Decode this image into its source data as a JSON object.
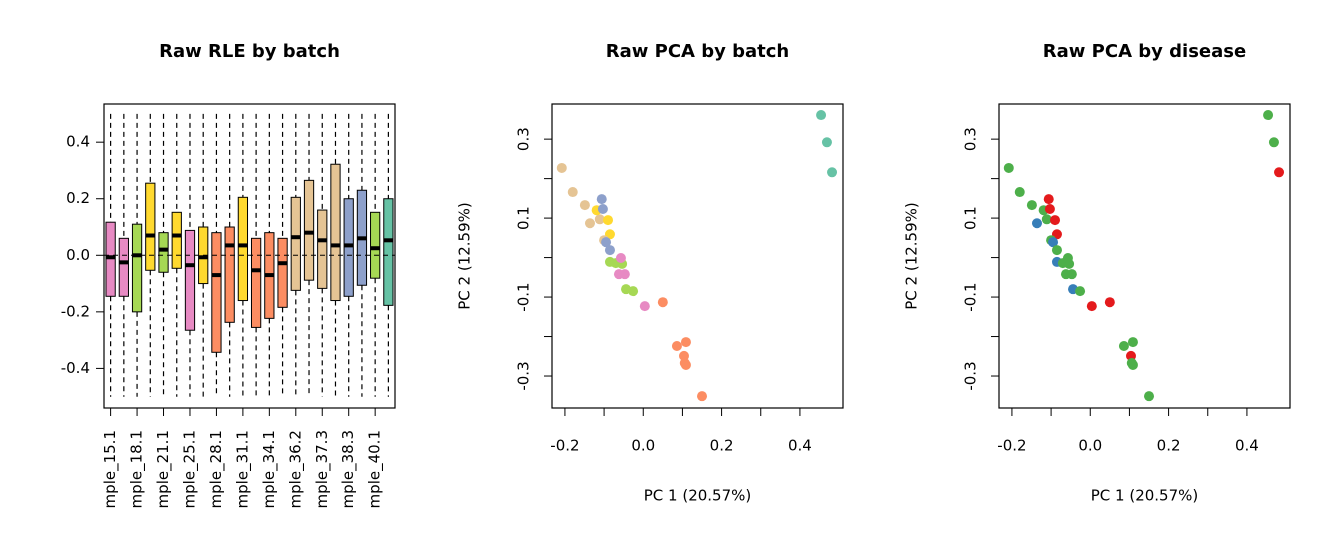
{
  "chart_data": [
    {
      "type": "box",
      "title": "Raw RLE by batch",
      "categories": [
        "mple_15.1",
        null,
        "mple_18.1",
        null,
        "mple_21.1",
        null,
        "mple_25.1",
        null,
        "mple_28.1",
        null,
        "mple_31.1",
        null,
        "mple_34.1",
        null,
        "mple_36.2",
        null,
        "mple_37.3",
        null,
        "mple_38.3",
        null,
        "mple_40.1",
        null
      ],
      "boxes": [
        {
          "low": -0.5,
          "q1": -0.145,
          "median": -0.007,
          "q3": 0.117,
          "high": 0.5,
          "color": "#e78ac3"
        },
        {
          "low": -0.5,
          "q1": -0.145,
          "median": -0.025,
          "q3": 0.06,
          "high": 0.5,
          "color": "#e78ac3"
        },
        {
          "low": -0.5,
          "q1": -0.2,
          "median": 0,
          "q3": 0.11,
          "high": 0.5,
          "color": "#a6d854"
        },
        {
          "low": -0.5,
          "q1": -0.053,
          "median": 0.07,
          "q3": 0.255,
          "high": 0.5,
          "color": "#ffd92f"
        },
        {
          "low": -0.5,
          "q1": -0.06,
          "median": 0.02,
          "q3": 0.08,
          "high": 0.5,
          "color": "#a6d854"
        },
        {
          "low": -0.5,
          "q1": -0.046,
          "median": 0.07,
          "q3": 0.152,
          "high": 0.5,
          "color": "#ffd92f"
        },
        {
          "low": -0.5,
          "q1": -0.265,
          "median": -0.035,
          "q3": 0.088,
          "high": 0.5,
          "color": "#e78ac3"
        },
        {
          "low": -0.5,
          "q1": -0.1,
          "median": -0.007,
          "q3": 0.1,
          "high": 0.5,
          "color": "#ffd92f"
        },
        {
          "low": -0.5,
          "q1": -0.343,
          "median": -0.07,
          "q3": 0.08,
          "high": 0.5,
          "color": "#fc8d62"
        },
        {
          "low": -0.5,
          "q1": -0.237,
          "median": 0.035,
          "q3": 0.1,
          "high": 0.5,
          "color": "#fc8d62"
        },
        {
          "low": -0.5,
          "q1": -0.16,
          "median": 0.035,
          "q3": 0.205,
          "high": 0.5,
          "color": "#ffd92f"
        },
        {
          "low": -0.5,
          "q1": -0.255,
          "median": -0.053,
          "q3": 0.06,
          "high": 0.5,
          "color": "#fc8d62"
        },
        {
          "low": -0.5,
          "q1": -0.223,
          "median": -0.07,
          "q3": 0.08,
          "high": 0.5,
          "color": "#fc8d62"
        },
        {
          "low": -0.5,
          "q1": -0.184,
          "median": -0.028,
          "q3": 0.06,
          "high": 0.5,
          "color": "#fc8d62"
        },
        {
          "low": -0.5,
          "q1": -0.124,
          "median": 0.064,
          "q3": 0.205,
          "high": 0.5,
          "color": "#e5c494"
        },
        {
          "low": -0.5,
          "q1": -0.088,
          "median": 0.08,
          "q3": 0.265,
          "high": 0.5,
          "color": "#e5c494"
        },
        {
          "low": -0.5,
          "q1": -0.117,
          "median": 0.053,
          "q3": 0.16,
          "high": 0.5,
          "color": "#e5c494"
        },
        {
          "low": -0.5,
          "q1": -0.16,
          "median": 0.035,
          "q3": 0.322,
          "high": 0.5,
          "color": "#e5c494"
        },
        {
          "low": -0.5,
          "q1": -0.145,
          "median": 0.035,
          "q3": 0.2,
          "high": 0.5,
          "color": "#8da0cb"
        },
        {
          "low": -0.5,
          "q1": -0.106,
          "median": 0.06,
          "q3": 0.23,
          "high": 0.5,
          "color": "#8da0cb"
        },
        {
          "low": -0.5,
          "q1": -0.081,
          "median": 0.025,
          "q3": 0.152,
          "high": 0.5,
          "color": "#a6d854"
        },
        {
          "low": -0.5,
          "q1": -0.177,
          "median": 0.053,
          "q3": 0.2,
          "high": 0.5,
          "color": "#66c2a5"
        }
      ],
      "ylim": [
        -0.54,
        0.535
      ],
      "yticks": [
        -0.4,
        -0.2,
        {
          "value": 0,
          "label": "0.0"
        },
        0.2,
        0.4
      ]
    },
    {
      "type": "scatter",
      "title": "Raw PCA by batch",
      "x_label": "PC 1 (20.57%)",
      "y_label": "PC 2 (12.59%)",
      "x": [
        0.454,
        0.469,
        0.482,
        -0.208,
        -0.18,
        -0.149,
        -0.136,
        -0.111,
        -0.119,
        -0.106,
        -0.103,
        -0.09,
        -0.085,
        -0.1,
        -0.095,
        -0.085,
        -0.085,
        -0.07,
        -0.054,
        -0.057,
        -0.062,
        -0.047,
        -0.044,
        -0.026,
        0.004,
        0.05,
        0.086,
        0.109,
        0.104,
        0.106,
        0.109,
        0.15
      ],
      "y": [
        0.361,
        0.292,
        0.216,
        0.227,
        0.166,
        0.133,
        0.087,
        0.097,
        0.12,
        0.148,
        0.123,
        0.095,
        0.059,
        0.044,
        0.039,
        0.019,
        -0.011,
        -0.014,
        -0.016,
        -0.001,
        -0.042,
        -0.042,
        -0.08,
        -0.085,
        -0.123,
        -0.113,
        -0.224,
        -0.214,
        -0.249,
        -0.267,
        -0.272,
        -0.351
      ],
      "colors": [
        "#66c2a5",
        "#66c2a5",
        "#66c2a5",
        "#e5c494",
        "#e5c494",
        "#e5c494",
        "#e5c494",
        "#e5c494",
        "#ffd92f",
        "#8da0cb",
        "#8da0cb",
        "#ffd92f",
        "#ffd92f",
        "#e5c494",
        "#8da0cb",
        "#8da0cb",
        "#a6d854",
        "#a6d854",
        "#a6d854",
        "#e78ac3",
        "#e78ac3",
        "#e78ac3",
        "#a6d854",
        "#a6d854",
        "#e78ac3",
        "#fc8d62",
        "#fc8d62",
        "#fc8d62",
        "#fc8d62",
        "#fc8d62",
        "#fc8d62",
        "#fc8d62"
      ],
      "xlim": [
        -0.233,
        0.51
      ],
      "ylim": [
        -0.381,
        0.389
      ],
      "xticks": [
        -0.2,
        {
          "value": 0,
          "label": "0.0"
        },
        0.2,
        0.4
      ],
      "xticks_minor": [
        -0.1,
        0.1,
        0.3
      ],
      "yticks": [
        -0.3,
        -0.1,
        0.1,
        0.3
      ],
      "yticks_minor": [
        -0.2,
        0,
        0.2
      ]
    },
    {
      "type": "scatter",
      "title": "Raw PCA by disease",
      "x_label": "PC 1 (20.57%)",
      "y_label": "PC 2 (12.59%)",
      "x": [
        0.454,
        0.469,
        0.482,
        -0.208,
        -0.18,
        -0.149,
        -0.136,
        -0.111,
        -0.119,
        -0.106,
        -0.103,
        -0.09,
        -0.085,
        -0.1,
        -0.095,
        -0.085,
        -0.085,
        -0.07,
        -0.054,
        -0.057,
        -0.062,
        -0.047,
        -0.044,
        -0.026,
        0.004,
        0.05,
        0.086,
        0.109,
        0.104,
        0.106,
        0.109,
        0.15
      ],
      "y": [
        0.361,
        0.292,
        0.216,
        0.227,
        0.166,
        0.133,
        0.087,
        0.097,
        0.12,
        0.148,
        0.123,
        0.095,
        0.059,
        0.044,
        0.039,
        0.019,
        -0.011,
        -0.014,
        -0.016,
        -0.001,
        -0.042,
        -0.042,
        -0.08,
        -0.085,
        -0.123,
        -0.113,
        -0.224,
        -0.214,
        -0.249,
        -0.267,
        -0.272,
        -0.351
      ],
      "colors": [
        "#4daf4a",
        "#4daf4a",
        "#e41a1c",
        "#4daf4a",
        "#4daf4a",
        "#4daf4a",
        "#377eb8",
        "#4daf4a",
        "#4daf4a",
        "#e41a1c",
        "#e41a1c",
        "#e41a1c",
        "#e41a1c",
        "#4daf4a",
        "#377eb8",
        "#4daf4a",
        "#377eb8",
        "#4daf4a",
        "#4daf4a",
        "#4daf4a",
        "#4daf4a",
        "#4daf4a",
        "#377eb8",
        "#4daf4a",
        "#e41a1c",
        "#e41a1c",
        "#4daf4a",
        "#4daf4a",
        "#e41a1c",
        "#4daf4a",
        "#4daf4a",
        "#4daf4a"
      ],
      "xlim": [
        -0.233,
        0.51
      ],
      "ylim": [
        -0.381,
        0.389
      ],
      "xticks": [
        -0.2,
        {
          "value": 0,
          "label": "0.0"
        },
        0.2,
        0.4
      ],
      "xticks_minor": [
        -0.1,
        0.1,
        0.3
      ],
      "yticks": [
        -0.3,
        -0.1,
        0.1,
        0.3
      ],
      "yticks_minor": [
        -0.2,
        0,
        0.2
      ]
    }
  ]
}
